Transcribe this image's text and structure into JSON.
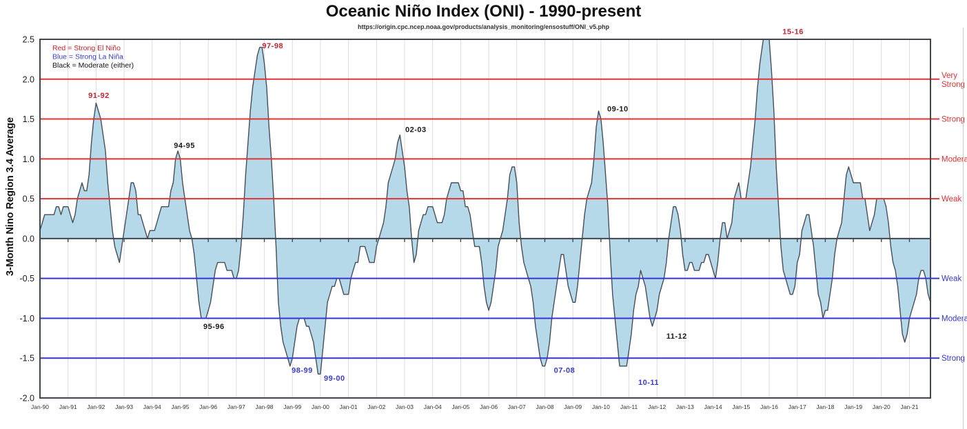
{
  "page": {
    "title": "Oceanic Niño Index (ONI) - 1990-present",
    "subtitle": "https://origin.cpc.ncep.noaa.gov/products/analysis_monitoring/ensostuff/ONI_v5.php"
  },
  "chart_data": {
    "type": "area",
    "title": "Oceanic Niño Index (ONI) - 1990-present",
    "subtitle": "https://origin.cpc.ncep.noaa.gov/products/analysis_monitoring/ensostuff/ONI_v5.php",
    "xlabel": "",
    "ylabel": "3-Month Nino Region 3.4 Average",
    "ylim": [
      -2.0,
      2.5
    ],
    "x_start": "Jan-1990",
    "x_interval": "monthly",
    "grid": "vertical-yearly",
    "y_ticks": [
      "2.5",
      "2.0",
      "1.5",
      "1.0",
      "0.5",
      "0.0",
      "-0.5",
      "-1.0",
      "-1.5",
      "-2.0"
    ],
    "x_ticks": [
      "Jan-90",
      "Jan-91",
      "Jan-92",
      "Jan-93",
      "Jan-94",
      "Jan-95",
      "Jan-96",
      "Jan-97",
      "Jan-98",
      "Jan-99",
      "Jan-00",
      "Jan-01",
      "Jan-02",
      "Jan-03",
      "Jan-04",
      "Jan-05",
      "Jan-06",
      "Jan-07",
      "Jan-08",
      "Jan-09",
      "Jan-10",
      "Jan-11",
      "Jan-12",
      "Jan-13",
      "Jan-14",
      "Jan-15",
      "Jan-16",
      "Jan-17",
      "Jan-18",
      "Jan-19",
      "Jan-20",
      "Jan-21"
    ],
    "values": [
      0.1,
      0.2,
      0.3,
      0.3,
      0.3,
      0.3,
      0.3,
      0.4,
      0.4,
      0.3,
      0.4,
      0.4,
      0.4,
      0.3,
      0.2,
      0.3,
      0.5,
      0.6,
      0.7,
      0.6,
      0.6,
      0.8,
      1.2,
      1.5,
      1.7,
      1.6,
      1.5,
      1.3,
      1.1,
      0.7,
      0.4,
      0.1,
      -0.1,
      -0.2,
      -0.3,
      -0.1,
      0.1,
      0.3,
      0.5,
      0.7,
      0.7,
      0.6,
      0.3,
      0.3,
      0.2,
      0.1,
      0.0,
      0.1,
      0.1,
      0.1,
      0.2,
      0.3,
      0.4,
      0.4,
      0.4,
      0.4,
      0.6,
      0.7,
      1.0,
      1.1,
      1.0,
      0.7,
      0.5,
      0.3,
      0.1,
      0.0,
      -0.2,
      -0.5,
      -0.8,
      -1.0,
      -1.0,
      -1.0,
      -0.9,
      -0.8,
      -0.6,
      -0.4,
      -0.3,
      -0.3,
      -0.3,
      -0.3,
      -0.4,
      -0.4,
      -0.4,
      -0.5,
      -0.5,
      -0.4,
      -0.1,
      0.3,
      0.8,
      1.2,
      1.6,
      1.9,
      2.1,
      2.3,
      2.4,
      2.4,
      2.2,
      1.9,
      1.4,
      1.0,
      0.5,
      -0.1,
      -0.8,
      -1.1,
      -1.3,
      -1.4,
      -1.5,
      -1.6,
      -1.5,
      -1.3,
      -1.1,
      -1.0,
      -1.0,
      -1.0,
      -1.1,
      -1.1,
      -1.2,
      -1.3,
      -1.5,
      -1.7,
      -1.7,
      -1.4,
      -1.1,
      -0.8,
      -0.7,
      -0.6,
      -0.6,
      -0.5,
      -0.5,
      -0.6,
      -0.7,
      -0.7,
      -0.7,
      -0.5,
      -0.4,
      -0.3,
      -0.3,
      -0.1,
      -0.1,
      -0.1,
      -0.2,
      -0.3,
      -0.3,
      -0.3,
      -0.1,
      0.0,
      0.1,
      0.2,
      0.4,
      0.7,
      0.8,
      0.9,
      1.0,
      1.2,
      1.3,
      1.1,
      0.9,
      0.6,
      0.4,
      0.0,
      -0.3,
      -0.2,
      0.1,
      0.2,
      0.3,
      0.3,
      0.4,
      0.4,
      0.4,
      0.3,
      0.2,
      0.2,
      0.2,
      0.3,
      0.5,
      0.6,
      0.7,
      0.7,
      0.7,
      0.7,
      0.6,
      0.6,
      0.4,
      0.4,
      0.3,
      0.1,
      -0.1,
      -0.1,
      -0.1,
      -0.3,
      -0.6,
      -0.8,
      -0.9,
      -0.8,
      -0.6,
      -0.4,
      -0.1,
      0.0,
      0.1,
      0.3,
      0.5,
      0.8,
      0.9,
      0.9,
      0.7,
      0.2,
      -0.1,
      -0.3,
      -0.4,
      -0.5,
      -0.6,
      -0.8,
      -1.1,
      -1.3,
      -1.5,
      -1.6,
      -1.6,
      -1.5,
      -1.3,
      -1.0,
      -0.8,
      -0.6,
      -0.4,
      -0.2,
      -0.2,
      -0.4,
      -0.6,
      -0.7,
      -0.8,
      -0.8,
      -0.6,
      -0.3,
      0.0,
      0.3,
      0.5,
      0.6,
      0.7,
      1.0,
      1.4,
      1.6,
      1.5,
      1.2,
      0.8,
      0.4,
      -0.2,
      -0.7,
      -1.0,
      -1.3,
      -1.6,
      -1.6,
      -1.6,
      -1.6,
      -1.4,
      -1.2,
      -0.9,
      -0.7,
      -0.6,
      -0.4,
      -0.5,
      -0.6,
      -0.8,
      -1.0,
      -1.1,
      -1.0,
      -0.9,
      -0.7,
      -0.6,
      -0.5,
      -0.3,
      0.0,
      0.2,
      0.4,
      0.4,
      0.3,
      0.1,
      -0.2,
      -0.4,
      -0.4,
      -0.3,
      -0.3,
      -0.4,
      -0.4,
      -0.4,
      -0.3,
      -0.3,
      -0.2,
      -0.2,
      -0.3,
      -0.4,
      -0.5,
      -0.3,
      0.0,
      0.2,
      0.2,
      0.0,
      0.1,
      0.2,
      0.5,
      0.6,
      0.7,
      0.5,
      0.5,
      0.5,
      0.7,
      0.9,
      1.2,
      1.5,
      1.9,
      2.2,
      2.4,
      2.6,
      2.6,
      2.5,
      2.1,
      1.6,
      0.9,
      0.4,
      -0.1,
      -0.4,
      -0.5,
      -0.6,
      -0.7,
      -0.7,
      -0.6,
      -0.3,
      -0.2,
      0.1,
      0.2,
      0.3,
      0.3,
      0.1,
      -0.1,
      -0.4,
      -0.7,
      -0.8,
      -1.0,
      -0.9,
      -0.9,
      -0.7,
      -0.5,
      -0.2,
      0.0,
      0.1,
      0.2,
      0.5,
      0.8,
      0.9,
      0.8,
      0.7,
      0.7,
      0.7,
      0.7,
      0.5,
      0.5,
      0.3,
      0.1,
      0.2,
      0.3,
      0.5,
      0.5,
      0.5,
      0.5,
      0.4,
      0.2,
      -0.1,
      -0.3,
      -0.4,
      -0.6,
      -0.9,
      -1.2,
      -1.3,
      -1.2,
      -1.0,
      -0.9,
      -0.8,
      -0.7,
      -0.5,
      -0.4,
      -0.4,
      -0.5,
      -0.7,
      -0.8
    ],
    "legend": [
      {
        "text": "Red = Strong  El Niño",
        "color": "#cc2027"
      },
      {
        "text": "Blue = Strong  La Niña",
        "color": "#3a3acd"
      },
      {
        "text": "Black = Moderate  (either)",
        "color": "#111111"
      }
    ],
    "el_nino_thresholds": [
      {
        "value": 0.5,
        "label": "Weak"
      },
      {
        "value": 1.0,
        "label": "Moderate"
      },
      {
        "value": 1.5,
        "label": "Strong"
      },
      {
        "value": 2.0,
        "label": "Very Strong"
      }
    ],
    "la_nina_thresholds": [
      {
        "value": -0.5,
        "label": "Weak"
      },
      {
        "value": -1.0,
        "label": "Moderate"
      },
      {
        "value": -1.5,
        "label": "Strong"
      }
    ],
    "annotations": [
      {
        "text": "91-92",
        "year": 1992.1,
        "value": 1.8,
        "color": "#c42430"
      },
      {
        "text": "94-95",
        "year": 1995.15,
        "value": 1.17,
        "color": "#1a1a1a"
      },
      {
        "text": "95-96",
        "year": 1996.2,
        "value": -1.1,
        "color": "#1a1a1a"
      },
      {
        "text": "97-98",
        "year": 1998.3,
        "value": 2.42,
        "color": "#c42430"
      },
      {
        "text": "98-99",
        "year": 1999.35,
        "value": -1.65,
        "color": "#3a3acd"
      },
      {
        "text": "99-00",
        "year": 2000.5,
        "value": -1.75,
        "color": "#3a3acd"
      },
      {
        "text": "02-03",
        "year": 2003.4,
        "value": 1.37,
        "color": "#1a1a1a"
      },
      {
        "text": "07-08",
        "year": 2008.7,
        "value": -1.65,
        "color": "#3a3acd"
      },
      {
        "text": "09-10",
        "year": 2010.6,
        "value": 1.63,
        "color": "#1a1a1a"
      },
      {
        "text": "10-11",
        "year": 2011.7,
        "value": -1.8,
        "color": "#3a3acd"
      },
      {
        "text": "11-12",
        "year": 2012.7,
        "value": -1.22,
        "color": "#1a1a1a"
      },
      {
        "text": "15-16",
        "year": 2016.85,
        "value": 2.6,
        "color": "#c42430"
      }
    ],
    "colors": {
      "el_nino_line": "#e03232",
      "la_nina_line": "#3535d2",
      "fill": "#b5d9e8",
      "series_line": "#454e58",
      "grid": "#dcdcdc",
      "axis": "#3f4650",
      "y_tick_text": "#1a1a1a",
      "x_tick_text": "#333333"
    }
  }
}
